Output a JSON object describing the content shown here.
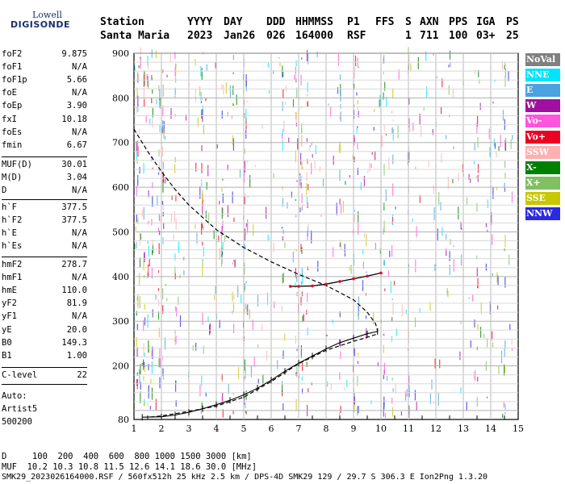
{
  "logo": {
    "top": "Lowell",
    "main": "DIGISONDE"
  },
  "header": {
    "row1": [
      "Station",
      "YYYY",
      "DAY",
      "DDD",
      "HHMMSS",
      "P1",
      "FFS",
      "S",
      "AXN",
      "PPS",
      "IGA",
      "PS"
    ],
    "row2": [
      "Santa Maria",
      "2023",
      "Jan26",
      "026",
      "164000",
      "RSF",
      "1",
      "711",
      "100",
      "03+",
      "25"
    ]
  },
  "params": {
    "group1": [
      {
        "name": "foF2",
        "value": "9.875"
      },
      {
        "name": "foF1",
        "value": "N/A"
      },
      {
        "name": "foF1p",
        "value": "5.66"
      },
      {
        "name": "foE",
        "value": "N/A"
      },
      {
        "name": "foEp",
        "value": "3.90"
      },
      {
        "name": "fxI",
        "value": "10.18"
      },
      {
        "name": "foEs",
        "value": "N/A"
      },
      {
        "name": "fmin",
        "value": "6.67"
      }
    ],
    "group2": [
      {
        "name": "MUF(D)",
        "value": "30.01"
      },
      {
        "name": "M(D)",
        "value": "3.04"
      },
      {
        "name": "D",
        "value": "N/A"
      }
    ],
    "group3": [
      {
        "name": "h`F",
        "value": "377.5"
      },
      {
        "name": "h`F2",
        "value": "377.5"
      },
      {
        "name": "h`E",
        "value": "N/A"
      },
      {
        "name": "h`Es",
        "value": "N/A"
      }
    ],
    "group4": [
      {
        "name": "hmF2",
        "value": "278.7"
      },
      {
        "name": "hmF1",
        "value": "N/A"
      },
      {
        "name": "hmE",
        "value": "110.0"
      },
      {
        "name": "yF2",
        "value": "81.9"
      },
      {
        "name": "yF1",
        "value": "N/A"
      },
      {
        "name": "yE",
        "value": "20.0"
      },
      {
        "name": "B0",
        "value": "149.3"
      },
      {
        "name": "B1",
        "value": "1.00"
      }
    ],
    "group5": [
      {
        "name": "C-level",
        "value": "22"
      }
    ],
    "auto": [
      "Auto:",
      "Artist5",
      "500200"
    ]
  },
  "legend": [
    {
      "label": "NoVal",
      "color": "#808080"
    },
    {
      "label": "NNE",
      "color": "#00e5ff"
    },
    {
      "label": "E",
      "color": "#4aa3df"
    },
    {
      "label": "W",
      "color": "#a010a0"
    },
    {
      "label": "Vo-",
      "color": "#ff55dd"
    },
    {
      "label": "Vo+",
      "color": "#ee0022"
    },
    {
      "label": "SSW",
      "color": "#ffb0b0"
    },
    {
      "label": "X-",
      "color": "#008000"
    },
    {
      "label": "X+",
      "color": "#80c060"
    },
    {
      "label": "SSE",
      "color": "#c8c800"
    },
    {
      "label": "NNW",
      "color": "#2a2ae0"
    }
  ],
  "footer": {
    "line1": "D     100  200  400  600  800 1000 1500 3000 [km]",
    "line2": "MUF  10.2 10.3 10.8 11.5 12.6 14.1 18.6 30.0 [MHz]",
    "line3": "SMK29_2023026164000.RSF / 560fx512h 25 kHz 2.5 km / DPS-4D SMK29 129 / 29.7 S 306.3 E Ion2Png 1.3.20"
  },
  "chart_data": {
    "type": "scatter",
    "xlim": [
      1,
      15
    ],
    "ylim": [
      80,
      900
    ],
    "x_ticks": [
      1,
      2,
      3,
      4,
      5,
      6,
      7,
      8,
      9,
      10,
      11,
      12,
      13,
      14,
      15
    ],
    "y_ticks": [
      80,
      200,
      300,
      400,
      500,
      600,
      700,
      800,
      900
    ],
    "grid": true,
    "profile_dashed": {
      "x": [
        1.0,
        1.5,
        2.0,
        2.5,
        3.0,
        4.0,
        5.0,
        6.0,
        7.0,
        8.0,
        9.0,
        9.5,
        9.8,
        9.875,
        9.8,
        9.4,
        9.0,
        8.0,
        7.0,
        6.0,
        5.0,
        4.0,
        3.0,
        2.0,
        1.5
      ],
      "y": [
        730,
        680,
        635,
        595,
        560,
        505,
        465,
        433,
        405,
        380,
        348,
        320,
        295,
        278.7,
        270,
        262,
        255,
        235,
        205,
        165,
        130,
        110,
        98,
        88,
        85
      ]
    },
    "virtual_height_trace": {
      "x": [
        1.3,
        2.0,
        2.5,
        3.0,
        3.5,
        4.0,
        4.5,
        5.0,
        5.5,
        6.0,
        6.5,
        7.0,
        7.5,
        8.0,
        8.5,
        9.0,
        9.5,
        9.875
      ],
      "y": [
        85,
        86,
        90,
        96,
        104,
        113,
        123,
        135,
        150,
        168,
        188,
        206,
        222,
        238,
        252,
        262,
        272,
        277
      ]
    },
    "f2_trace": {
      "x": [
        6.7,
        7.0,
        7.5,
        8.0,
        8.5,
        9.0,
        9.5,
        10.0
      ],
      "y": [
        378,
        378,
        379,
        383,
        389,
        395,
        401,
        408
      ]
    }
  }
}
